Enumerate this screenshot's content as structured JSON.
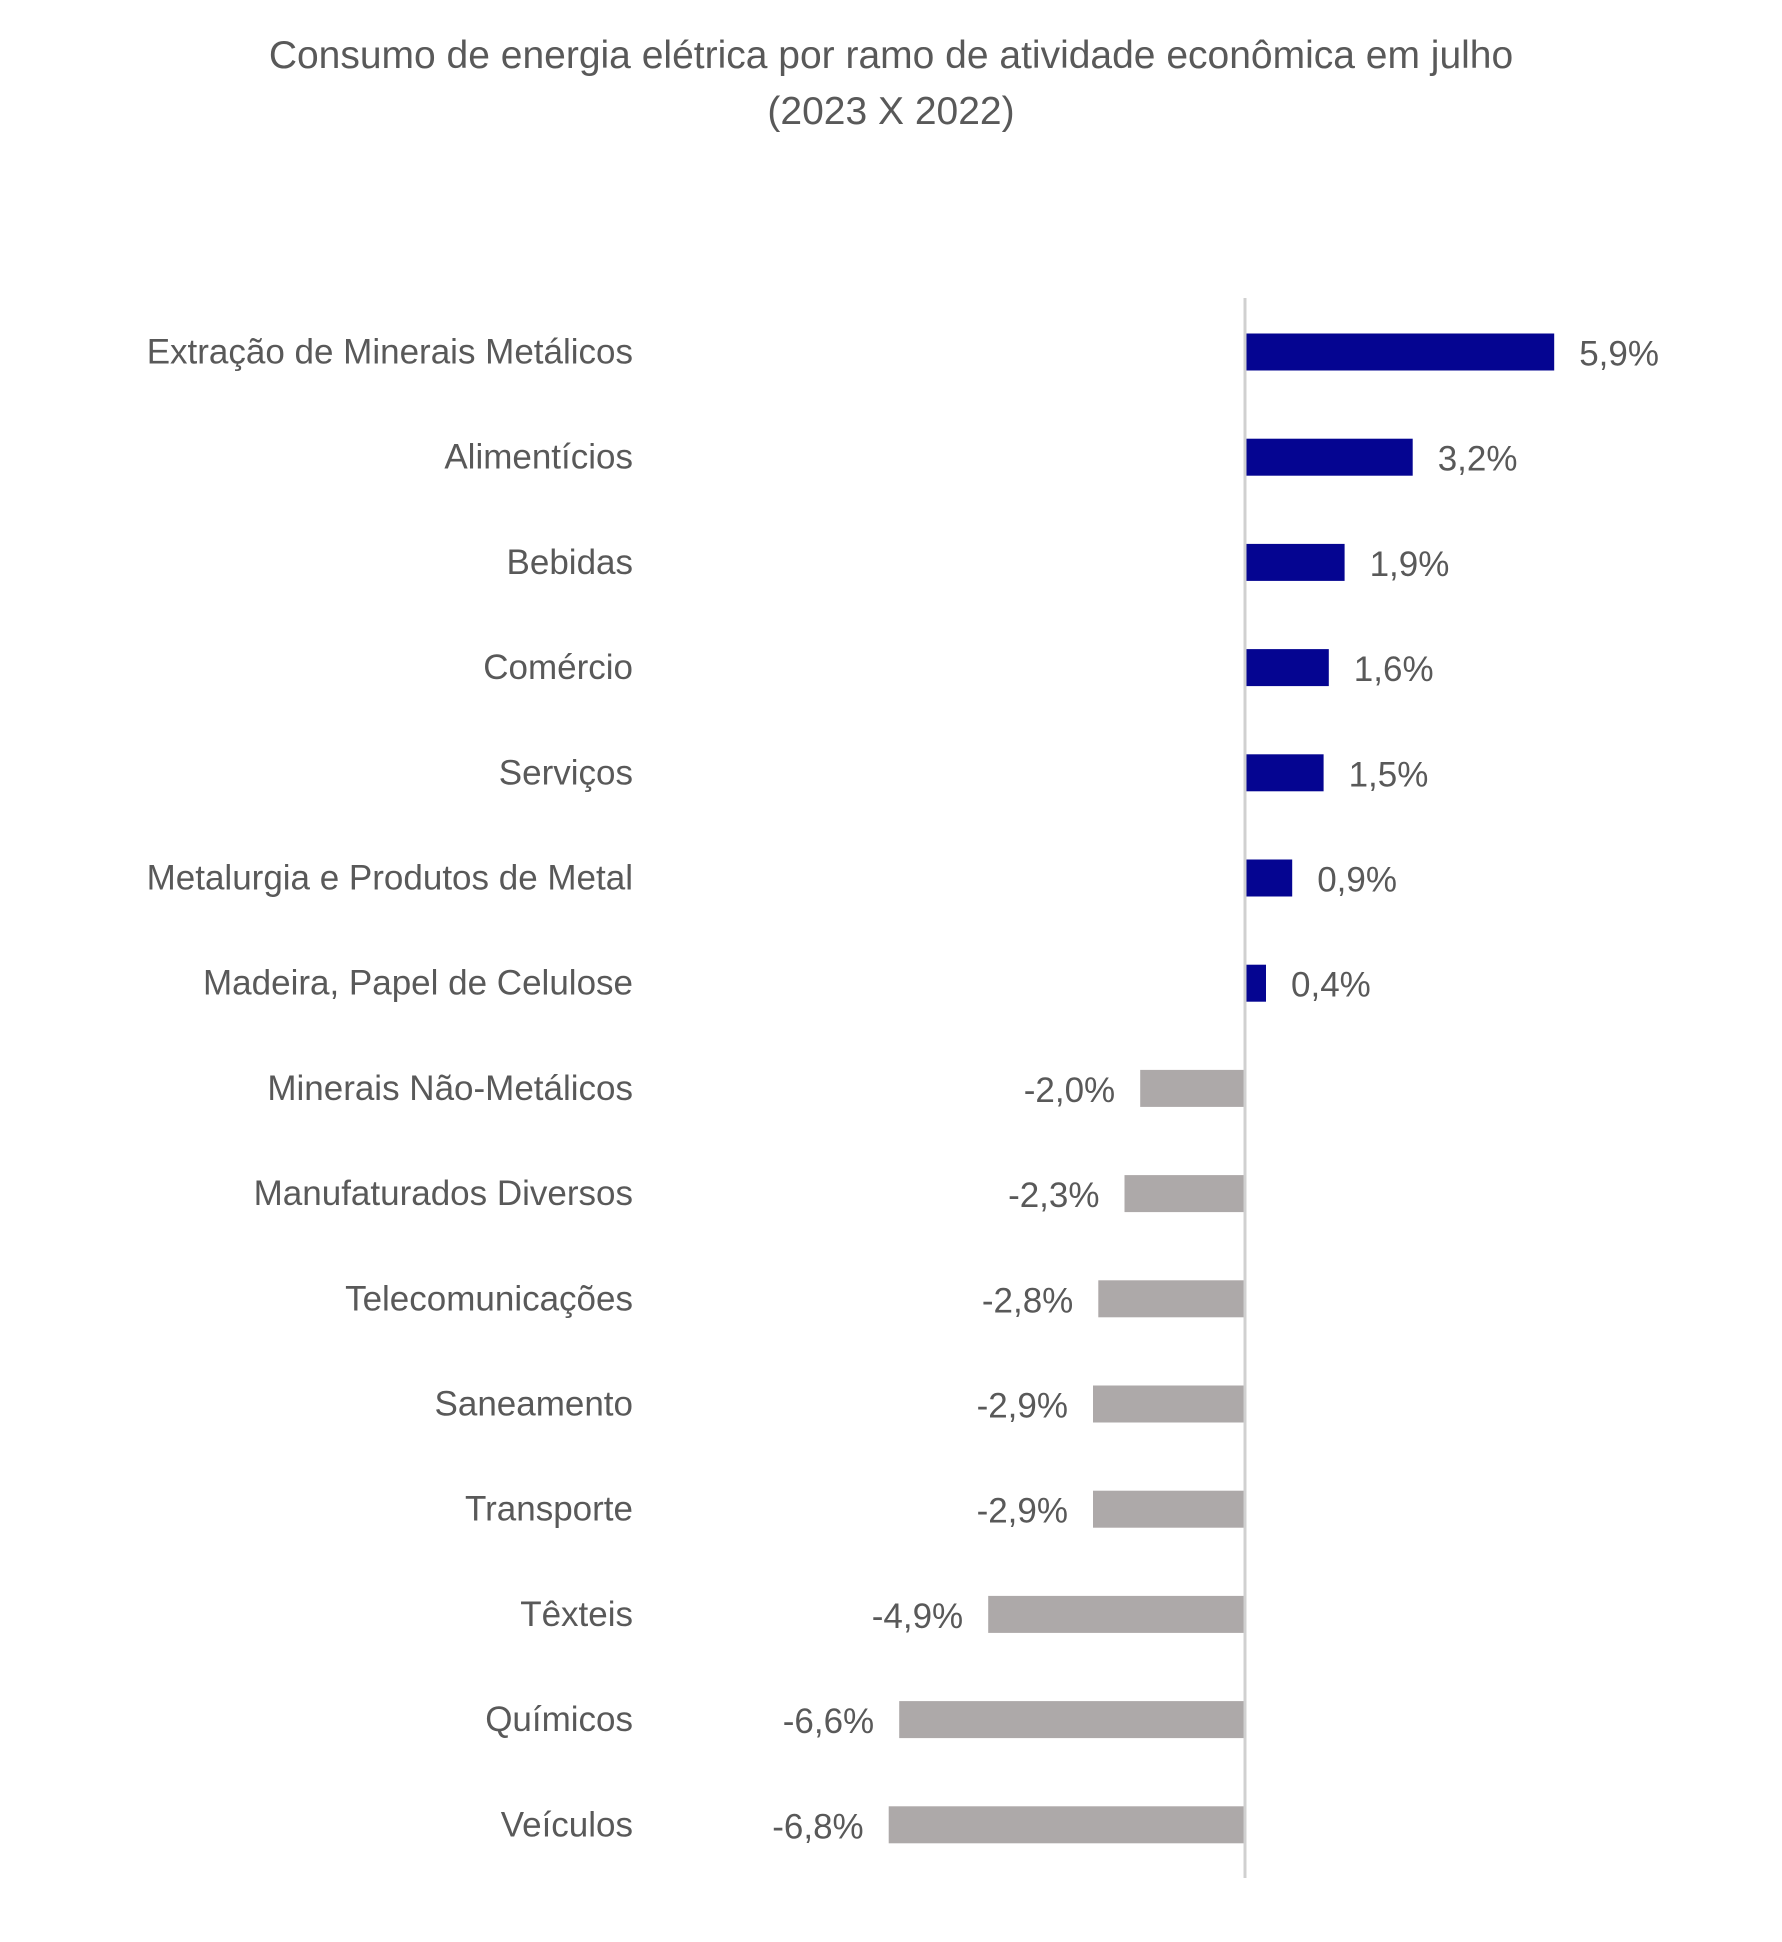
{
  "chart_data": {
    "type": "bar",
    "orientation": "horizontal",
    "title": "Consumo de energia elétrica por ramo de atividade econômica em julho",
    "subtitle": "(2023 X 2022)",
    "xlabel": "",
    "ylabel": "",
    "xlim": [
      -7.5,
      7.0
    ],
    "grid": false,
    "legend": "none",
    "categories": [
      "Extração de Minerais Metálicos",
      "Alimentícios",
      "Bebidas",
      "Comércio",
      "Serviços",
      "Metalurgia e Produtos de Metal",
      "Madeira, Papel de Celulose",
      "Minerais Não-Metálicos",
      "Manufaturados Diversos",
      "Telecomunicações",
      "Saneamento",
      "Transporte",
      "Têxteis",
      "Químicos",
      "Veículos"
    ],
    "values": [
      5.9,
      3.2,
      1.9,
      1.6,
      1.5,
      0.9,
      0.4,
      -2.0,
      -2.3,
      -2.8,
      -2.9,
      -2.9,
      -4.9,
      -6.6,
      -6.8
    ],
    "data_labels": [
      "5,9%",
      "3,2%",
      "1,9%",
      "1,6%",
      "1,5%",
      "0,9%",
      "0,4%",
      "-2,0%",
      "-2,3%",
      "-2,8%",
      "-2,9%",
      "-2,9%",
      "-4,9%",
      "-6,6%",
      "-6,8%"
    ],
    "colors": {
      "positive": "#050591",
      "negative": "#ADA9A9",
      "axis": "#D0D0D0",
      "text": "#595959"
    }
  }
}
